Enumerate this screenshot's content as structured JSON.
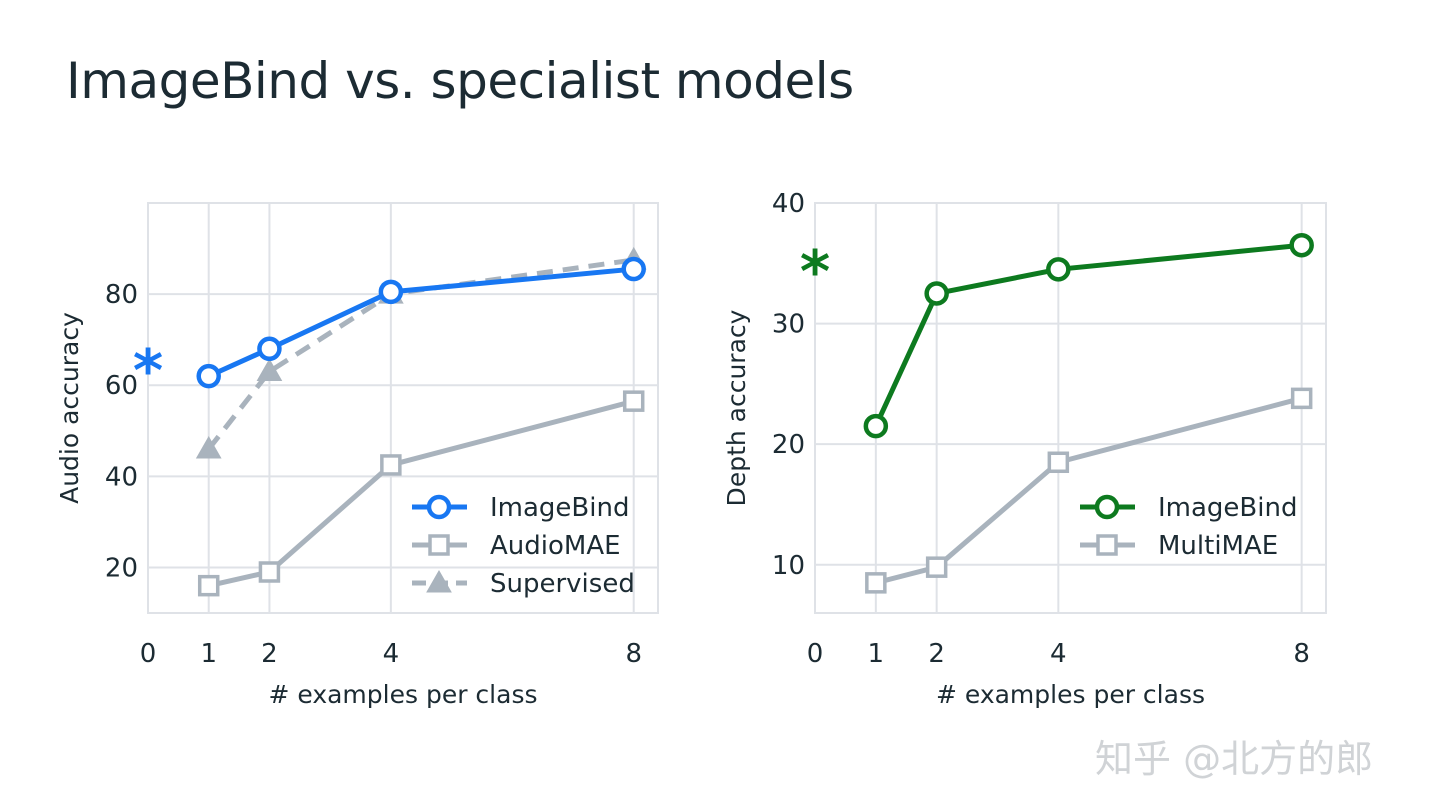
{
  "title": "ImageBind vs. specialist models",
  "watermark": "知乎 @北方的郎",
  "colors": {
    "imagebind_audio": "#1877f2",
    "imagebind_depth": "#0d7a1f",
    "specialist": "#a9b3bd",
    "grid": "#dfe2e7",
    "text": "#1c2b33"
  },
  "chart_data": [
    {
      "type": "line",
      "xlabel": "# examples per class",
      "ylabel": "Audio accuracy",
      "xlim": [
        0,
        8.4
      ],
      "ylim": [
        10,
        100
      ],
      "xticks": [
        0,
        1,
        2,
        4,
        8
      ],
      "xtick_labels": [
        "0",
        "1",
        "2",
        "4",
        "8"
      ],
      "yticks": [
        20,
        40,
        60,
        80
      ],
      "ytick_labels": [
        "20",
        "40",
        "60",
        "80"
      ],
      "grid": true,
      "legend_position": "bottom-right",
      "zero_shot_marker": {
        "label": "*",
        "x": 0,
        "y": 65,
        "color": "#1877f2"
      },
      "series": [
        {
          "name": "ImageBind",
          "x": [
            1,
            2,
            4,
            8
          ],
          "values": [
            62,
            68,
            80.5,
            85.5
          ],
          "marker": "circle",
          "color": "#1877f2",
          "dashed": false
        },
        {
          "name": "AudioMAE",
          "x": [
            1,
            2,
            4,
            8
          ],
          "values": [
            16,
            19,
            42.5,
            56.5
          ],
          "marker": "square",
          "color": "#a9b3bd",
          "dashed": false
        },
        {
          "name": "Supervised",
          "x": [
            1,
            2,
            4,
            8
          ],
          "values": [
            46,
            63,
            80,
            87.5
          ],
          "marker": "triangle",
          "color": "#a9b3bd",
          "dashed": true
        }
      ]
    },
    {
      "type": "line",
      "xlabel": "# examples per class",
      "ylabel": "Depth accuracy",
      "xlim": [
        0,
        8.4
      ],
      "ylim": [
        6,
        40
      ],
      "xticks": [
        0,
        1,
        2,
        4,
        8
      ],
      "xtick_labels": [
        "0",
        "1",
        "2",
        "4",
        "8"
      ],
      "yticks": [
        10,
        20,
        30,
        40
      ],
      "ytick_labels": [
        "10",
        "20",
        "30",
        "40"
      ],
      "grid": true,
      "legend_position": "bottom-right",
      "zero_shot_marker": {
        "label": "*",
        "x": 0,
        "y": 35,
        "color": "#0d7a1f"
      },
      "series": [
        {
          "name": "ImageBind",
          "x": [
            1,
            2,
            4,
            8
          ],
          "values": [
            21.5,
            32.5,
            34.5,
            36.5
          ],
          "marker": "circle",
          "color": "#0d7a1f",
          "dashed": false
        },
        {
          "name": "MultiMAE",
          "x": [
            1,
            2,
            4,
            8
          ],
          "values": [
            8.5,
            9.8,
            18.5,
            23.8
          ],
          "marker": "square",
          "color": "#a9b3bd",
          "dashed": false
        }
      ]
    }
  ]
}
